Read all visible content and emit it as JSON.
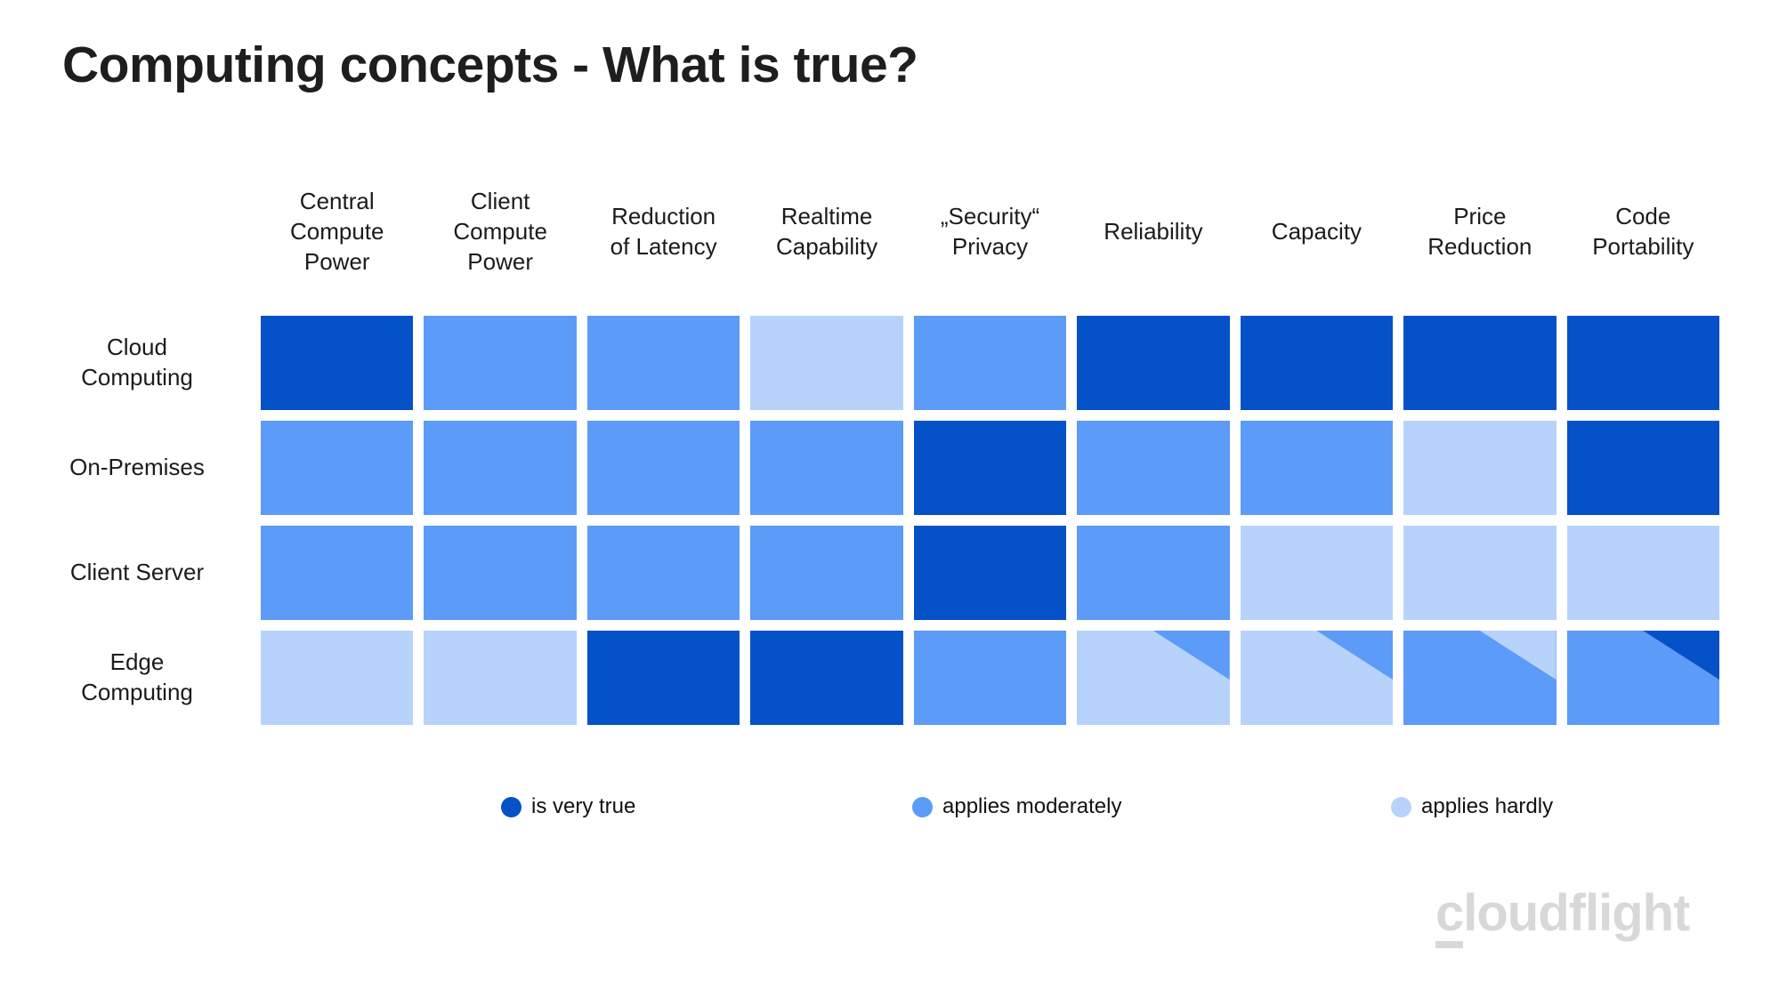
{
  "title": "Computing concepts - What is true?",
  "logo": {
    "first_letter": "c",
    "rest": "loudflight"
  },
  "chart_data": {
    "type": "heatmap",
    "title": "Computing concepts - What is true?",
    "columns": [
      "Central\nCompute\nPower",
      "Client\nCompute\nPower",
      "Reduction\nof Latency",
      "Realtime\nCapability",
      "„Security“\nPrivacy",
      "Reliability",
      "Capacity",
      "Price\nReduction",
      "Code\nPortability"
    ],
    "rows": [
      "Cloud\nComputing",
      "On-Premises",
      "Client Server",
      "Edge\nComputing"
    ],
    "legend": [
      {
        "key": "very",
        "label": "is very true"
      },
      {
        "key": "moderate",
        "label": "applies moderately"
      },
      {
        "key": "hardly",
        "label": "applies hardly"
      }
    ],
    "palette": {
      "very": "#0551C8",
      "moderate": "#5C9BF8",
      "hardly": "#B7D3FB"
    },
    "value_meaning": {
      "very": "is very true",
      "moderate": "applies moderately",
      "hardly": "applies hardly"
    },
    "matrix": [
      [
        "very",
        "moderate",
        "moderate",
        "hardly",
        "moderate",
        "very",
        "very",
        "very",
        "very"
      ],
      [
        "moderate",
        "moderate",
        "moderate",
        "moderate",
        "very",
        "moderate",
        "moderate",
        "hardly",
        "very"
      ],
      [
        "moderate",
        "moderate",
        "moderate",
        "moderate",
        "very",
        "moderate",
        "hardly",
        "hardly",
        "hardly"
      ],
      [
        "hardly",
        "hardly",
        "very",
        "very",
        "moderate",
        {
          "base": "hardly",
          "corner": "moderate"
        },
        {
          "base": "hardly",
          "corner": "moderate"
        },
        {
          "base": "moderate",
          "corner": "hardly"
        },
        {
          "base": "moderate",
          "corner": "very"
        }
      ]
    ]
  }
}
